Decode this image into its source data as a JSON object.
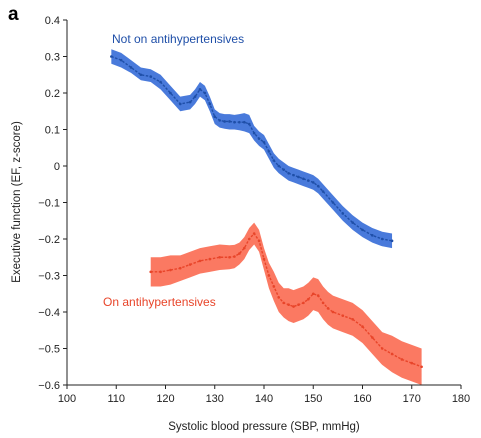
{
  "colors": {
    "blue_line": "#1f4fa8",
    "blue_band": "#3a6fd8",
    "red_line": "#e8452a",
    "red_band": "#fb6e55",
    "axis": "#222222"
  },
  "chart_data": {
    "type": "line",
    "panel_label": "a",
    "xlabel": "Systolic blood pressure (SBP, mmHg)",
    "ylabel": "Executive function (EF, z-score)",
    "xlim": [
      100,
      180
    ],
    "ylim": [
      -0.6,
      0.4
    ],
    "x_ticks": [
      100,
      110,
      120,
      130,
      140,
      150,
      160,
      170,
      180
    ],
    "y_ticks": [
      -0.6,
      -0.5,
      -0.4,
      -0.3,
      -0.2,
      -0.1,
      0,
      0.1,
      0.2,
      0.3,
      0.4
    ],
    "y_tick_labels": [
      "−0.6",
      "−0.5",
      "−0.4",
      "−0.3",
      "−0.2",
      "−0.1",
      "0",
      "0.1",
      "0.2",
      "0.3",
      "0.4"
    ],
    "grid": false,
    "series": [
      {
        "name": "Not on antihypertensives",
        "color_key": "blue",
        "x": [
          109,
          111,
          113,
          115,
          117,
          119,
          121,
          123,
          125,
          126,
          127,
          128,
          129,
          130,
          131,
          132,
          133,
          134,
          135,
          136,
          137,
          138,
          139,
          140,
          141,
          142,
          143,
          144,
          145,
          146,
          147,
          148,
          149,
          150,
          151,
          152,
          154,
          156,
          158,
          160,
          162,
          164,
          166
        ],
        "y": [
          0.3,
          0.29,
          0.27,
          0.25,
          0.245,
          0.23,
          0.2,
          0.17,
          0.175,
          0.19,
          0.21,
          0.2,
          0.17,
          0.135,
          0.125,
          0.122,
          0.122,
          0.12,
          0.12,
          0.12,
          0.115,
          0.09,
          0.075,
          0.065,
          0.04,
          0.015,
          0.0,
          -0.01,
          -0.02,
          -0.025,
          -0.03,
          -0.035,
          -0.04,
          -0.045,
          -0.055,
          -0.07,
          -0.1,
          -0.13,
          -0.155,
          -0.175,
          -0.19,
          -0.2,
          -0.205
        ],
        "ci_lower": [
          0.28,
          0.27,
          0.255,
          0.235,
          0.23,
          0.21,
          0.18,
          0.15,
          0.155,
          0.17,
          0.19,
          0.18,
          0.15,
          0.115,
          0.105,
          0.102,
          0.1,
          0.1,
          0.098,
          0.095,
          0.09,
          0.07,
          0.055,
          0.045,
          0.02,
          -0.005,
          -0.02,
          -0.03,
          -0.04,
          -0.045,
          -0.05,
          -0.055,
          -0.06,
          -0.065,
          -0.075,
          -0.09,
          -0.12,
          -0.15,
          -0.175,
          -0.195,
          -0.21,
          -0.22,
          -0.225
        ],
        "ci_upper": [
          0.32,
          0.31,
          0.29,
          0.27,
          0.265,
          0.25,
          0.22,
          0.19,
          0.195,
          0.21,
          0.23,
          0.22,
          0.19,
          0.155,
          0.145,
          0.142,
          0.142,
          0.14,
          0.142,
          0.145,
          0.14,
          0.11,
          0.095,
          0.085,
          0.06,
          0.035,
          0.02,
          0.01,
          0.0,
          -0.005,
          -0.01,
          -0.015,
          -0.02,
          -0.025,
          -0.035,
          -0.05,
          -0.08,
          -0.11,
          -0.135,
          -0.155,
          -0.17,
          -0.18,
          -0.185
        ]
      },
      {
        "name": "On antihypertensives",
        "color_key": "red",
        "x": [
          117,
          119,
          121,
          123,
          125,
          127,
          129,
          131,
          133,
          134,
          135,
          136,
          137,
          138,
          139,
          140,
          141,
          142,
          143,
          144,
          145,
          146,
          147,
          148,
          149,
          150,
          151,
          152,
          153,
          154,
          156,
          158,
          160,
          162,
          164,
          166,
          168,
          170,
          172
        ],
        "y": [
          -0.29,
          -0.29,
          -0.285,
          -0.28,
          -0.27,
          -0.26,
          -0.255,
          -0.25,
          -0.25,
          -0.248,
          -0.24,
          -0.225,
          -0.2,
          -0.185,
          -0.205,
          -0.255,
          -0.3,
          -0.33,
          -0.36,
          -0.375,
          -0.38,
          -0.385,
          -0.38,
          -0.375,
          -0.365,
          -0.35,
          -0.355,
          -0.375,
          -0.39,
          -0.4,
          -0.41,
          -0.42,
          -0.44,
          -0.47,
          -0.5,
          -0.515,
          -0.53,
          -0.54,
          -0.55
        ],
        "ci_lower": [
          -0.33,
          -0.33,
          -0.325,
          -0.315,
          -0.305,
          -0.295,
          -0.29,
          -0.285,
          -0.283,
          -0.28,
          -0.27,
          -0.255,
          -0.23,
          -0.215,
          -0.235,
          -0.285,
          -0.335,
          -0.37,
          -0.4,
          -0.415,
          -0.425,
          -0.43,
          -0.425,
          -0.42,
          -0.41,
          -0.395,
          -0.4,
          -0.42,
          -0.435,
          -0.445,
          -0.455,
          -0.465,
          -0.485,
          -0.515,
          -0.545,
          -0.565,
          -0.58,
          -0.59,
          -0.6
        ],
        "ci_upper": [
          -0.25,
          -0.25,
          -0.245,
          -0.245,
          -0.235,
          -0.225,
          -0.22,
          -0.215,
          -0.217,
          -0.216,
          -0.21,
          -0.195,
          -0.17,
          -0.155,
          -0.175,
          -0.225,
          -0.265,
          -0.29,
          -0.32,
          -0.335,
          -0.335,
          -0.34,
          -0.335,
          -0.33,
          -0.32,
          -0.305,
          -0.31,
          -0.33,
          -0.345,
          -0.355,
          -0.365,
          -0.375,
          -0.395,
          -0.425,
          -0.455,
          -0.465,
          -0.48,
          -0.49,
          -0.5
        ]
      }
    ]
  }
}
